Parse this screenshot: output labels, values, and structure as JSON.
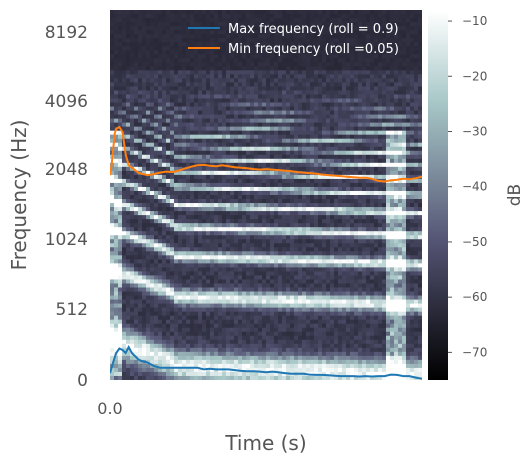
{
  "chart_data": {
    "type": "heatmap",
    "subtype": "spectrogram with spectral rolloff lines",
    "xlabel": "Time (s)",
    "ylabel": "Frequency (Hz)",
    "y_scale": "log2",
    "y_ticks": [
      "0",
      "512",
      "1024",
      "2048",
      "4096",
      "8192"
    ],
    "x_ticks": [
      "0.0"
    ],
    "colorbar": {
      "label": "dB",
      "ticks": [
        "−10",
        "−20",
        "−30",
        "−40",
        "−50",
        "−60",
        "−70"
      ],
      "range": [
        -75,
        -8
      ],
      "colormap": "bone"
    },
    "legend_position": "upper-right",
    "series": [
      {
        "name": "Max frequency (roll = 0.9)",
        "color": "#ff7f0e",
        "x": [
          0,
          0.5,
          1,
          1.5,
          2,
          3,
          4,
          5,
          6,
          7,
          8,
          9,
          10,
          12,
          14,
          16,
          18,
          20,
          22,
          24,
          26,
          28,
          30,
          32,
          34,
          36,
          38,
          40,
          42,
          44,
          46,
          48,
          50,
          52,
          54,
          56,
          58,
          60,
          62,
          64,
          66,
          68,
          70,
          72,
          74,
          76,
          78,
          80,
          82,
          84,
          86,
          88,
          90,
          92,
          94,
          96,
          98,
          100
        ],
        "values": [
          1950,
          2150,
          2500,
          2950,
          3100,
          3150,
          3000,
          2400,
          2150,
          2100,
          2050,
          2000,
          1980,
          1950,
          1970,
          2000,
          2020,
          2010,
          2040,
          2080,
          2120,
          2150,
          2160,
          2140,
          2130,
          2150,
          2130,
          2110,
          2100,
          2090,
          2070,
          2060,
          2070,
          2060,
          2050,
          2040,
          2030,
          2010,
          2000,
          1990,
          1980,
          1960,
          1950,
          1940,
          1930,
          1920,
          1910,
          1900,
          1900,
          1880,
          1840,
          1830,
          1850,
          1860,
          1880,
          1870,
          1890,
          1920
        ]
      },
      {
        "name": "Min frequency (roll =0.05)",
        "color": "#1f77b4",
        "x": [
          0,
          1,
          2,
          3,
          4,
          5,
          6,
          7,
          8,
          9,
          10,
          12,
          14,
          16,
          18,
          20,
          22,
          24,
          26,
          28,
          30,
          32,
          34,
          36,
          38,
          40,
          42,
          44,
          46,
          48,
          50,
          52,
          54,
          56,
          58,
          60,
          62,
          64,
          66,
          68,
          70,
          72,
          74,
          76,
          78,
          80,
          82,
          84,
          86,
          88,
          90,
          92,
          94,
          96,
          98,
          100
        ],
        "values": [
          270,
          300,
          330,
          345,
          340,
          330,
          350,
          330,
          320,
          310,
          305,
          300,
          290,
          285,
          285,
          285,
          285,
          285,
          285,
          285,
          280,
          282,
          280,
          280,
          280,
          278,
          276,
          275,
          275,
          274,
          272,
          274,
          272,
          270,
          268,
          268,
          268,
          266,
          265,
          265,
          264,
          263,
          262,
          262,
          262,
          261,
          262,
          261,
          262,
          262,
          266,
          265,
          262,
          262,
          258,
          255
        ]
      }
    ],
    "legend": [
      "Max frequency (roll = 0.9)",
      "Min frequency (roll =0.05)"
    ]
  }
}
